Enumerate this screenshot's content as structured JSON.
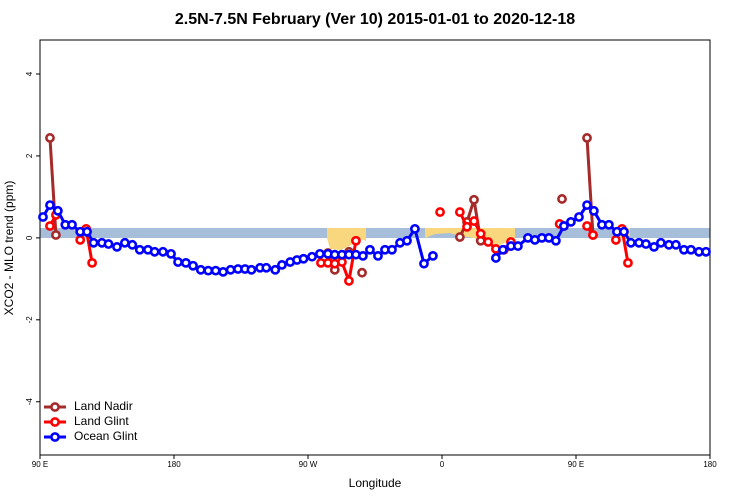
{
  "chart_data": {
    "type": "line",
    "title": "2.5N-7.5N February (Ver 10)   2015-01-01 to 2020-12-18",
    "x_label": "Longitude",
    "y_label": "XCO2 - MLO trend (ppm)",
    "xlim": [
      90,
      540
    ],
    "ylim": [
      -5.3,
      4.83
    ],
    "xticks": [
      {
        "value": 90,
        "label": "90 E"
      },
      180,
      {
        "value": 270,
        "label": "90 W"
      },
      {
        "value": 360,
        "label": "0"
      },
      {
        "value": 450,
        "label": "90 E"
      },
      {
        "value": 540,
        "label": "180"
      }
    ],
    "yticks": [
      -4,
      -2,
      0,
      2,
      4
    ],
    "legend": "bottom-left",
    "series": [
      {
        "name": "Land Nadir",
        "color": "#a52a2a",
        "x": [
          96.7,
          100.7,
          null,
          283.4,
          288,
          292.8,
          297.5,
          null,
          306.3,
          null,
          372,
          376.8,
          381.5,
          386,
          null,
          440.6,
          null,
          457.4,
          461.4
        ],
        "values": [
          2.44,
          0.07,
          null,
          -0.37,
          -0.78,
          -0.46,
          -0.34,
          null,
          -0.85,
          null,
          0.02,
          0.39,
          0.93,
          -0.07,
          null,
          0.95,
          null,
          2.44,
          0.07
        ]
      },
      {
        "name": "Land Glint",
        "color": "#ff0000",
        "x": [
          96.7,
          100.7,
          null,
          117,
          121,
          125,
          null,
          278.7,
          283.4,
          288,
          292.8,
          297.5,
          302.2,
          null,
          358.7,
          null,
          372,
          376.8,
          381.5,
          386,
          391,
          396.2,
          401.6,
          406.3,
          null,
          439,
          441.9,
          null,
          457.4,
          461.4,
          null,
          476.8,
          480.9,
          484.9
        ],
        "values": [
          0.29,
          0.56,
          null,
          -0.05,
          0.22,
          -0.61,
          null,
          -0.61,
          -0.61,
          -0.63,
          -0.59,
          -1.05,
          -0.07,
          null,
          0.63,
          null,
          0.63,
          0.27,
          0.41,
          0.1,
          -0.1,
          -0.27,
          -0.29,
          -0.1,
          null,
          0.34,
          0.29,
          null,
          0.29,
          0.07,
          null,
          -0.05,
          0.22,
          -0.61
        ]
      },
      {
        "name": "Ocean Glint",
        "color": "#0000ff",
        "x": [
          92,
          96.7,
          102,
          107,
          111.5,
          117,
          121.6,
          126,
          131.6,
          136,
          141.7,
          147,
          152,
          157,
          162.5,
          167,
          172.6,
          178,
          182.7,
          188,
          192.8,
          198,
          203,
          208,
          213,
          218,
          223,
          227.7,
          232,
          237.8,
          242,
          248,
          252.5,
          258,
          262.6,
          267,
          272.7,
          278,
          283.4,
          288,
          292.8,
          297.5,
          302.2,
          306.9,
          311.6,
          317,
          321.7,
          326.4,
          331.8,
          336.5,
          341.8,
          347.9,
          353.9,
          null,
          396.2,
          400.9,
          406.3,
          411,
          417.7,
          422.4,
          427.1,
          431.8,
          436.5,
          441.9,
          446.6,
          452,
          457.4,
          462,
          467.4,
          472.1,
          477.5,
          482.2,
          486.9,
          492.3,
          497,
          502.4,
          507,
          512.4,
          517.1,
          522.5,
          527.2,
          532.6,
          537.3
        ],
        "values": [
          0.51,
          0.8,
          0.66,
          0.32,
          0.32,
          0.15,
          0.15,
          -0.12,
          -0.12,
          -0.15,
          -0.22,
          -0.12,
          -0.17,
          -0.29,
          -0.29,
          -0.34,
          -0.34,
          -0.39,
          -0.59,
          -0.61,
          -0.68,
          -0.78,
          -0.8,
          -0.8,
          -0.83,
          -0.78,
          -0.76,
          -0.76,
          -0.78,
          -0.73,
          -0.73,
          -0.78,
          -0.66,
          -0.59,
          -0.54,
          -0.51,
          -0.46,
          -0.39,
          -0.39,
          -0.41,
          -0.41,
          -0.41,
          -0.41,
          -0.44,
          -0.29,
          -0.44,
          -0.29,
          -0.29,
          -0.12,
          -0.07,
          0.22,
          -0.63,
          -0.44,
          null,
          -0.49,
          -0.29,
          -0.2,
          -0.2,
          0,
          -0.05,
          0,
          0,
          -0.07,
          0.29,
          0.39,
          0.51,
          0.8,
          0.66,
          0.32,
          0.32,
          0.15,
          0.15,
          -0.12,
          -0.12,
          -0.15,
          -0.22,
          -0.12,
          -0.17,
          -0.17,
          -0.29,
          -0.29,
          -0.34,
          -0.34
        ]
      }
    ]
  }
}
